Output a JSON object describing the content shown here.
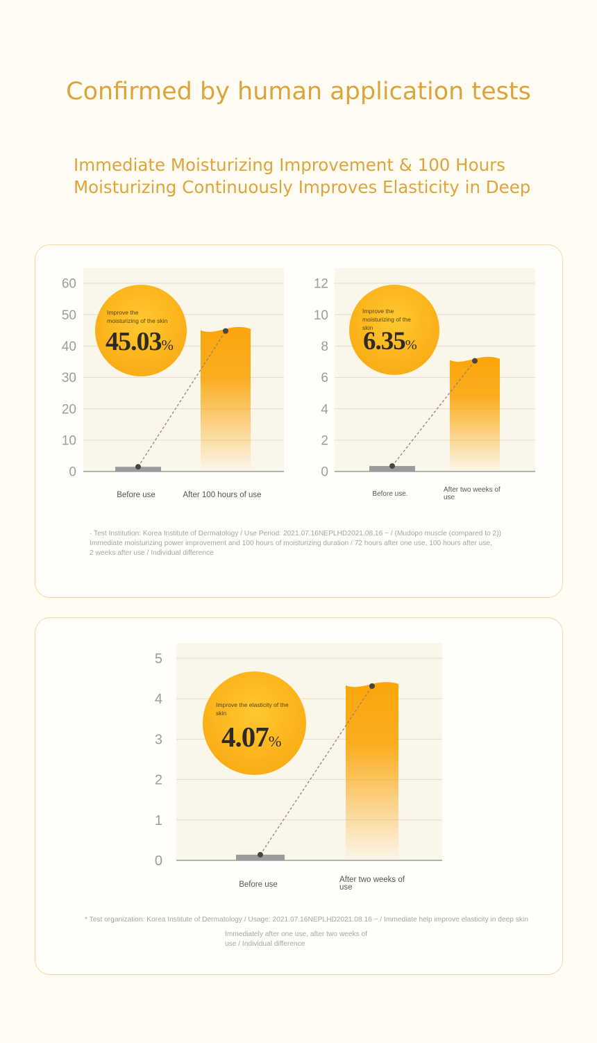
{
  "header": {
    "title": "Confirmed by human application tests",
    "subtitle_line1": "Immediate Moisturizing Improvement & 100 Hours",
    "subtitle_line2": "Moisturizing Continuously Improves Elasticity in Deep"
  },
  "colors": {
    "accent": "#dca43c",
    "bar_top": "#fba50a",
    "bar_base": "#9b9b9b",
    "badge": "#fbb21a",
    "card_border": "#f1d9a0"
  },
  "chart_data": [
    {
      "type": "bar",
      "categories": [
        "Before use",
        "After 100 hours of use"
      ],
      "values": [
        1.5,
        45.03
      ],
      "ylim": [
        0,
        60
      ],
      "yticks": [
        0,
        10,
        20,
        30,
        40,
        50,
        60
      ],
      "grid": true,
      "badge": {
        "label": "Improve the moisturizing of the skin",
        "value": "45.03",
        "unit": "%"
      }
    },
    {
      "type": "bar",
      "categories": [
        "Before use.",
        "After two weeks of use"
      ],
      "values": [
        0.35,
        7.1
      ],
      "ylim": [
        0,
        12
      ],
      "yticks": [
        0,
        2,
        4,
        6,
        8,
        10,
        12
      ],
      "grid": true,
      "badge": {
        "label": "Improve the moisturizing of the skin",
        "value": "6.35",
        "unit": "%"
      }
    },
    {
      "type": "bar",
      "categories": [
        "Before use",
        "After two weeks of use"
      ],
      "values": [
        0.14,
        4.33
      ],
      "ylim": [
        0,
        5
      ],
      "yticks": [
        0,
        1,
        2,
        3,
        4,
        5
      ],
      "grid": true,
      "badge": {
        "label": "Improve the elasticity of the skin",
        "value": "4.07",
        "unit": "%"
      }
    }
  ],
  "notes": {
    "card1_line1": "· Test Institution: Korea Institute of Dermatology / Use Period: 2021.07.16NEPLHD2021.08.16 ~ / (Mudopo muscle (compared to 2))",
    "card1_line2": "Immediate moisturizing power improvement and 100 hours of moisturizing duration / 72 hours after one use, 100 hours after use,",
    "card1_line3": "2 weeks after use / Individual difference",
    "card2_line1": "* Test organization: Korea Institute of Dermatology / Usage: 2021.07.16NEPLHD2021.08.16 ~ / Immediate help improve elasticity in deep skin",
    "card2_line2": "Immediately after one use, after two weeks of",
    "card2_line3": "use / Individual difference"
  }
}
